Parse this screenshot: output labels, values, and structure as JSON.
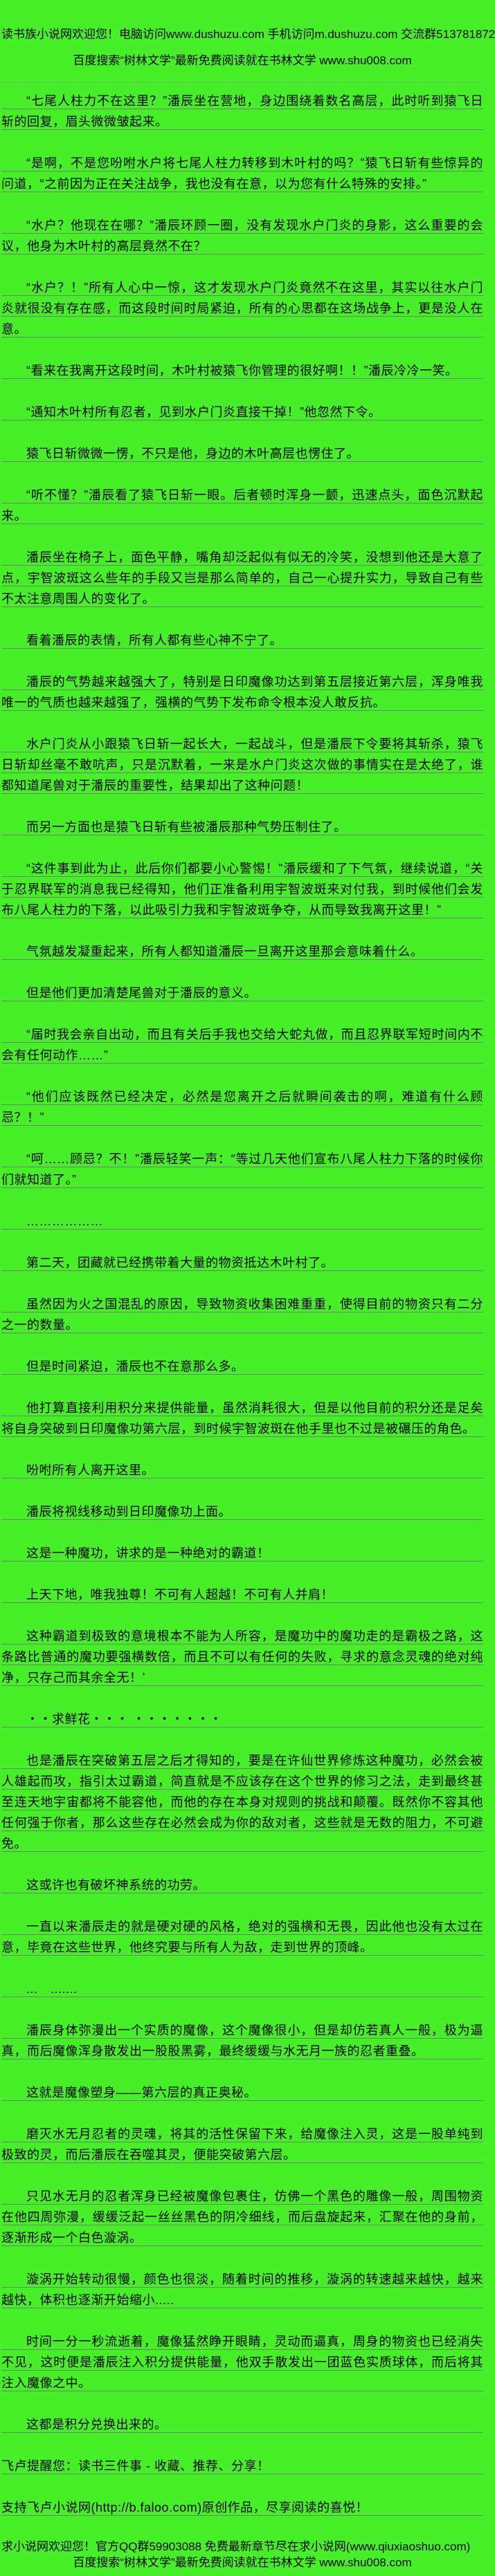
{
  "page": {
    "colors": {
      "background": "#46EF27",
      "text": "#000000",
      "underline": "#6F7F6F",
      "dashed_divider": "#8A9A8A"
    }
  },
  "header": {
    "line1": "读书族小说网欢迎您！电脑访问www.dushuzu.com 手机访问m.dushuzu.com 交流群513781872",
    "line2": "百度搜索“树林文学”最新免费阅读就在书林文学 www.shu008.com"
  },
  "content": {
    "paragraphs": [
      {
        "indent": true,
        "text": "“七尾人柱力不在这里？”潘辰坐在营地，身边围绕着数名高层，此时听到猿飞日斩的回复，眉头微微皱起来。"
      },
      {
        "indent": true,
        "text": "“是啊，不是您吩咐水户将七尾人柱力转移到木叶村的吗？”猿飞日斩有些惊异的问道，“之前因为正在关注战争，我也没有在意，以为您有什么特殊的安排。”"
      },
      {
        "indent": true,
        "text": "“水户？他现在在哪？”潘辰环顾一圈，没有发现水户门炎的身影，这么重要的会议，他身为木叶村的高层竟然不在？"
      },
      {
        "indent": true,
        "text": "“水户？！”所有人心中一惊，这才发现水户门炎竟然不在这里，其实以往水户门炎就很没有存在感，而这段时间时局紧迫，所有的心思都在这场战争上，更是没人在意。"
      },
      {
        "indent": true,
        "text": "“看来在我离开这段时间，木叶村被猿飞你管理的很好啊！！”潘辰冷冷一笑。"
      },
      {
        "indent": true,
        "text": "“通知木叶村所有忍者，见到水户门炎直接干掉！”他忽然下令。"
      },
      {
        "indent": true,
        "text": "猿飞日斩微微一愣，不只是他，身边的木叶高层也愣住了。"
      },
      {
        "indent": true,
        "text": "“听不懂？”潘辰看了猿飞日斩一眼。后者顿时浑身一颤，迅速点头，面色沉默起来。"
      },
      {
        "indent": true,
        "text": "潘辰坐在椅子上，面色平静，嘴角却泛起似有似无的冷笑，没想到他还是大意了点，宇智波斑这么些年的手段又岂是那么简单的，自己一心提升实力，导致自己有些不太注意周围人的变化了。"
      },
      {
        "indent": true,
        "text": "看着潘辰的表情，所有人都有些心神不宁了。"
      },
      {
        "indent": true,
        "text": "潘辰的气势越来越强大了，特别是日印魔像功达到第五层接近第六层，浑身唯我唯一的气质也越来越强了，强横的气势下发布命令根本没人敢反抗。"
      },
      {
        "indent": true,
        "text": "水户门炎从小跟猿飞日斩一起长大，一起战斗，但是潘辰下令要将其斩杀，猿飞日斩却丝毫不敢吭声，只是沉默着，一来是水户门炎这次做的事情实在是太绝了，谁都知道尾兽对于潘辰的重要性，结果却出了这种问题！"
      },
      {
        "indent": true,
        "text": "而另一方面也是猿飞日斩有些被潘辰那种气势压制住了。"
      },
      {
        "indent": true,
        "text": "“这件事到此为止，此后你们都要小心警惕！”潘辰缓和了下气氛，继续说道，“关于忍界联军的消息我已经得知，他们正准备利用宇智波斑来对付我，到时候他们会发布八尾人柱力的下落，以此吸引力我和宇智波斑争夺，从而导致我离开这里！”"
      },
      {
        "indent": true,
        "text": "气氛越发凝重起来，所有人都知道潘辰一旦离开这里那会意味着什么。"
      },
      {
        "indent": true,
        "text": "但是他们更加清楚尾兽对于潘辰的意义。"
      },
      {
        "indent": true,
        "text": "“届时我会亲自出动，而且有关后手我也交给大蛇丸做，而且忍界联军短时间内不会有任何动作……”"
      },
      {
        "indent": true,
        "text": "“他们应该既然已经决定，必然是您离开之后就瞬间袭击的啊，难道有什么顾忌？！”"
      },
      {
        "indent": true,
        "text": "“呵……顾忌？不！”潘辰轻笑一声：“等过几天他们宣布八尾人柱力下落的时候你们就知道了。”"
      },
      {
        "indent": true,
        "text": "………………"
      },
      {
        "indent": true,
        "text": "第二天，团藏就已经携带着大量的物资抵达木叶村了。"
      },
      {
        "indent": true,
        "text": "虽然因为火之国混乱的原因，导致物资收集困难重重，使得目前的物资只有二分之一的数量。"
      },
      {
        "indent": true,
        "text": "但是时间紧迫，潘辰也不在意那么多。"
      },
      {
        "indent": true,
        "text": "他打算直接利用积分来提供能量，虽然消耗很大，但是以他目前的积分还是足矣将自身突破到日印魔像功第六层，到时候宇智波斑在他手里也不过是被碾压的角色。"
      },
      {
        "indent": true,
        "text": "吩咐所有人离开这里。"
      },
      {
        "indent": true,
        "text": "潘辰将视线移动到日印魔像功上面。"
      },
      {
        "indent": true,
        "text": "这是一种魔功，讲求的是一种绝对的霸道！"
      },
      {
        "indent": true,
        "text": "上天下地，唯我独尊！不可有人超越！不可有人并肩！"
      },
      {
        "indent": true,
        "text": "这种霸道到极致的意境根本不能为人所容，是魔功中的魔功走的是霸极之路，这条路比普通的魔功要强横数倍，而且不可以有任何的失败，寻求的意念灵魂的绝对纯净，只存己而其余全无！’"
      },
      {
        "indent": true,
        "text": "・・求鲜花・・・ ・・・・・・・"
      },
      {
        "indent": true,
        "text": "也是潘辰在突破第五层之后才得知的，要是在许仙世界修炼这种魔功，必然会被人雄起而攻，指引太过霸道，简直就是不应该存在这个世界的修习之法，走到最终甚至连天地宇宙都将不能容他，而他的存在本身对规则的挑战和颠覆。既然你不容其他任何强于你者，那么这些存在必然会成为你的敌对者，这些就是无数的阻力，不可避免。"
      },
      {
        "indent": true,
        "text": "这或许也有破坏神系统的功劳。"
      },
      {
        "indent": true,
        "text": "一直以来潘辰走的就是硬对硬的风格，绝对的强横和无畏，因此他也没有太过在意，毕竟在这些世界，他终究要与所有人为敌，走到世界的顶峰。"
      },
      {
        "indent": true,
        "text": "...　......."
      },
      {
        "indent": true,
        "text": "潘辰身体弥漫出一个实质的魔像，这个魔像很小，但是却仿若真人一般，极为逼真，而后魔像浑身散发出一股股黑雾，最终缓缓与水无月一族的忍者重叠。"
      },
      {
        "indent": true,
        "text": "这就是魔像塑身——第六层的真正奥秘。"
      },
      {
        "indent": true,
        "text": "磨灭水无月忍者的灵魂，将其的活性保留下来，给魔像注入灵，这是一股单纯到极致的灵，而后潘辰在吞噬其灵，便能突破第六层。"
      },
      {
        "indent": true,
        "text": "只见水无月的忍者浑身已经被魔像包裹住，仿佛一个黑色的雕像一般，周围物资在他四周弥漫，缓缓泛起一丝丝黑色的阴冷细线，而后盘旋起来，汇聚在他的身前，逐渐形成一个白色漩涡。"
      },
      {
        "indent": true,
        "text": "漩涡开始转动很慢，颜色也很淡，随着时间的推移，漩涡的转速越来越快，越来越快，体积也逐渐开始缩小....."
      },
      {
        "indent": true,
        "text": "时间一分一秒流逝着，魔像猛然睁开眼睛，灵动而逼真，周身的物资也已经消失不见，这时便是潘辰注入积分提供能量，他双手散发出一团蓝色实质球体，而后将其注入魔像之中。"
      },
      {
        "indent": true,
        "text": "这都是积分兑换出来的。"
      },
      {
        "indent": false,
        "text": "飞卢提醒您：读书三件事 - 收藏、推荐、分享！"
      },
      {
        "indent": false,
        "text": "支持飞卢小说网(http://b.faloo.com)原创作品，尽享阅读的喜悦！"
      }
    ]
  },
  "footer": {
    "line1": "求小说网欢迎您！官方QQ群59903088 免费最新章节尽在求小说网(www.qiuxiaoshuo.com)",
    "line2": "百度搜索“树林文学”最新免费阅读就在书林文学 www.shu008.com"
  }
}
